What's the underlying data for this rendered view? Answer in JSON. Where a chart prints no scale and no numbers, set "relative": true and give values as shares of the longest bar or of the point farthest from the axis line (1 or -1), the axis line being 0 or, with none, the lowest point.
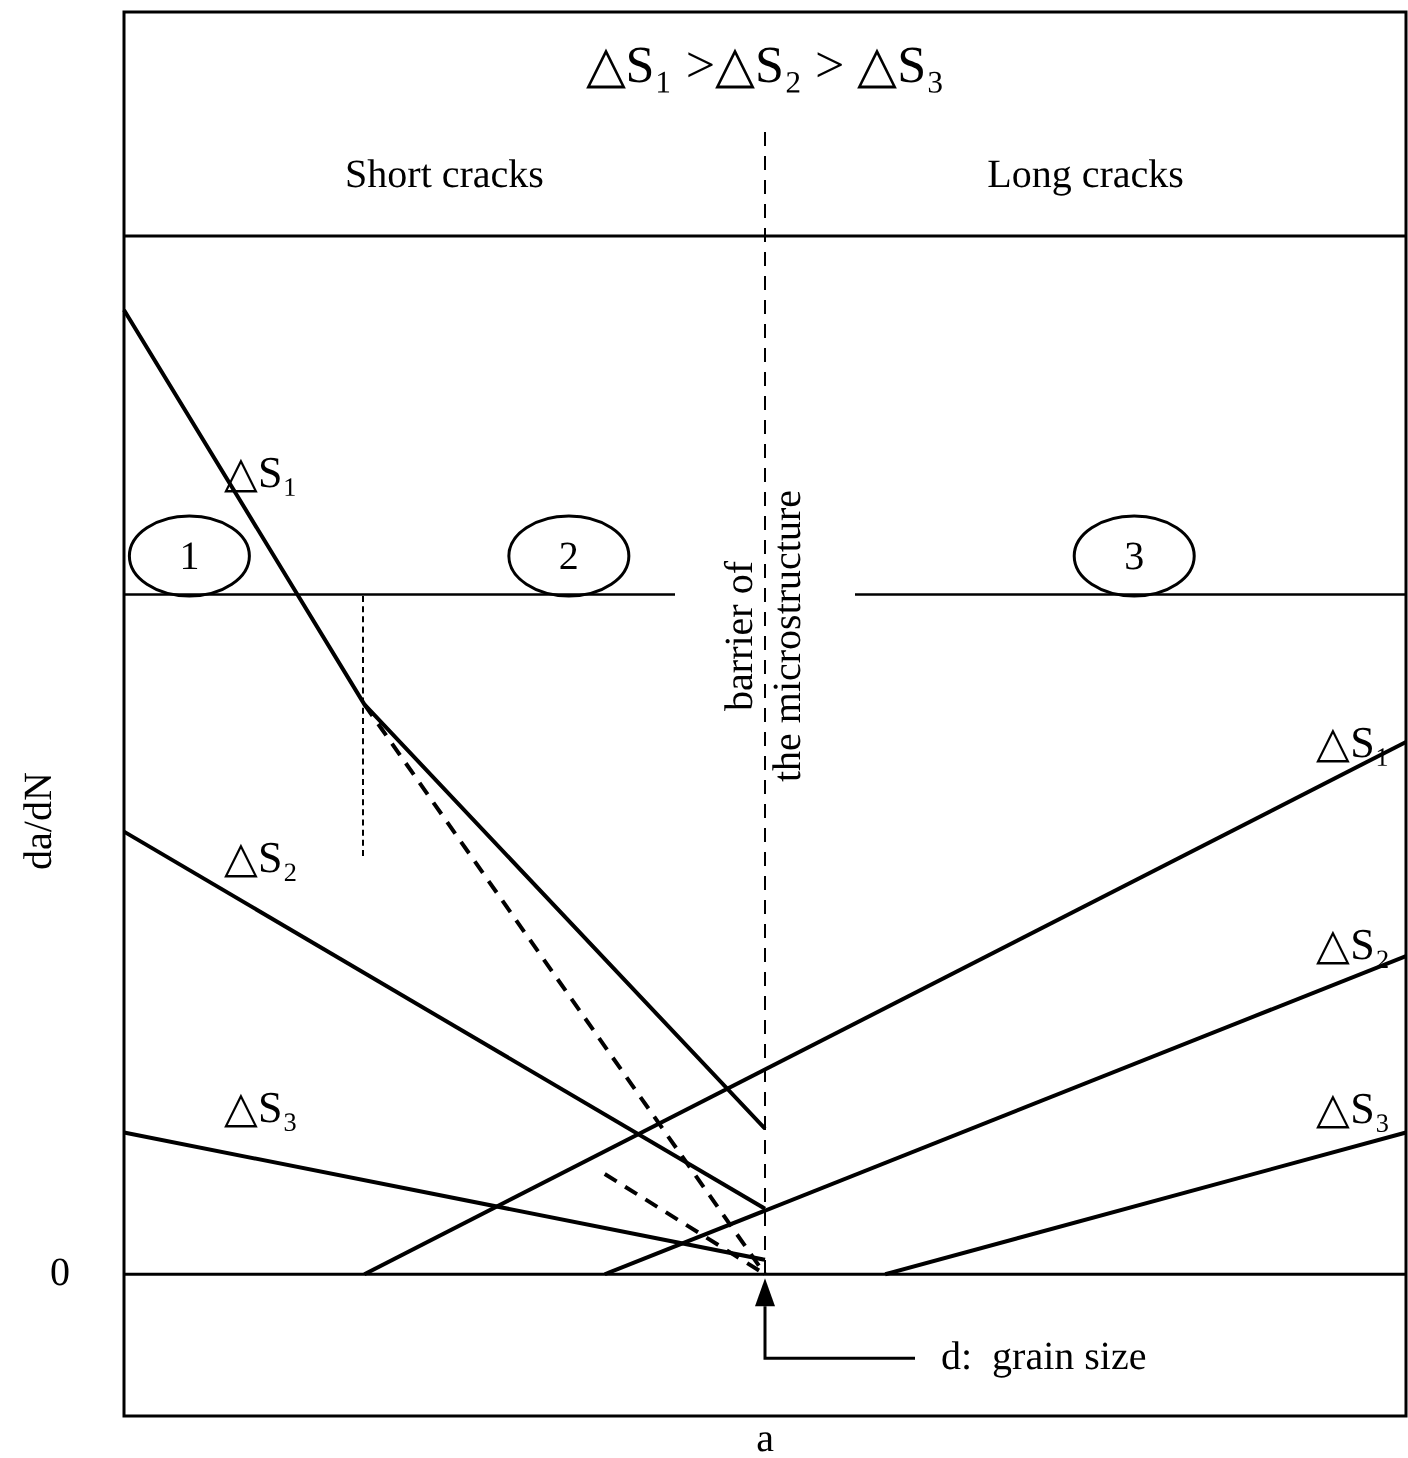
{
  "chart_data": {
    "type": "line",
    "title": "△S₁ >△S₂ > △S₃",
    "xlabel": "a",
    "ylabel": "da/dN",
    "relative": true,
    "tick_labels": false,
    "legend": false,
    "categories": [
      null,
      null,
      null,
      null,
      null,
      null,
      null,
      null,
      null,
      null,
      null,
      null,
      null,
      null,
      null,
      null,
      null,
      null,
      null,
      null,
      null,
      null,
      null,
      null,
      null,
      null,
      null,
      null,
      null,
      null,
      null,
      null,
      null
    ],
    "series": [
      {
        "name": "△S₁",
        "color": "#000000",
        "values": [
          1,
          null,
          null,
          null,
          null,
          null,
          0.591,
          null,
          null,
          null,
          null,
          null,
          null,
          null,
          null,
          null,
          0.151,
          null,
          null,
          null,
          null,
          null,
          null,
          null,
          null,
          null,
          null,
          null,
          null,
          null,
          null,
          null,
          null
        ]
      },
      {
        "name": "△S₂",
        "color": "#000000",
        "values": [
          0.459,
          null,
          null,
          null,
          null,
          null,
          null,
          null,
          null,
          null,
          null,
          null,
          null,
          null,
          null,
          null,
          0.068,
          null,
          null,
          null,
          null,
          null,
          null,
          null,
          null,
          null,
          null,
          null,
          null,
          null,
          null,
          null,
          null
        ]
      },
      {
        "name": "△S₃",
        "color": "#000000",
        "values": [
          0.147,
          null,
          null,
          null,
          null,
          null,
          null,
          null,
          null,
          null,
          null,
          null,
          null,
          null,
          null,
          null,
          0.015,
          null,
          null,
          null,
          null,
          null,
          null,
          null,
          null,
          null,
          null,
          null,
          null,
          null,
          null,
          null,
          null
        ]
      },
      {
        "name": "△S₁",
        "color": "#000000",
        "values": [
          null,
          null,
          null,
          null,
          null,
          null,
          0,
          null,
          null,
          null,
          null,
          null,
          null,
          null,
          null,
          null,
          null,
          null,
          null,
          null,
          null,
          null,
          null,
          null,
          null,
          null,
          null,
          null,
          null,
          null,
          null,
          null,
          0.552
        ]
      },
      {
        "name": "△S₂",
        "color": "#000000",
        "values": [
          null,
          null,
          null,
          null,
          null,
          null,
          null,
          null,
          null,
          null,
          null,
          null,
          0,
          null,
          null,
          null,
          null,
          null,
          null,
          null,
          null,
          null,
          null,
          null,
          null,
          null,
          null,
          null,
          null,
          null,
          null,
          null,
          0.33
        ]
      },
      {
        "name": "△S₃",
        "color": "#000000",
        "values": [
          null,
          null,
          null,
          null,
          null,
          null,
          null,
          null,
          null,
          null,
          null,
          null,
          null,
          null,
          null,
          null,
          null,
          null,
          null,
          0,
          null,
          null,
          null,
          null,
          null,
          null,
          null,
          null,
          null,
          null,
          null,
          null,
          0.147
        ]
      },
      {
        "color": "#000000",
        "line_style": "dashed",
        "values": [
          null,
          null,
          null,
          null,
          null,
          null,
          0.591,
          null,
          null,
          null,
          null,
          null,
          null,
          null,
          null,
          null,
          0,
          null,
          null,
          null,
          null,
          null,
          null,
          null,
          null,
          null,
          null,
          null,
          null,
          null,
          null,
          null,
          null
        ]
      },
      {
        "color": "#000000",
        "line_style": "dashed",
        "values": [
          null,
          null,
          null,
          null,
          null,
          null,
          null,
          null,
          null,
          null,
          null,
          null,
          0.104,
          null,
          null,
          null,
          0,
          null,
          null,
          null,
          null,
          null,
          null,
          null,
          null,
          null,
          null,
          null,
          null,
          null,
          null,
          null,
          null
        ]
      }
    ],
    "ref_lines": [
      {
        "axis": "y",
        "value": 0.705
      }
    ],
    "annotations": [
      "1",
      "2",
      "3",
      "0",
      "d:  grain size",
      "Short cracks",
      "Long cracks",
      "barrier of the microstructure"
    ]
  }
}
